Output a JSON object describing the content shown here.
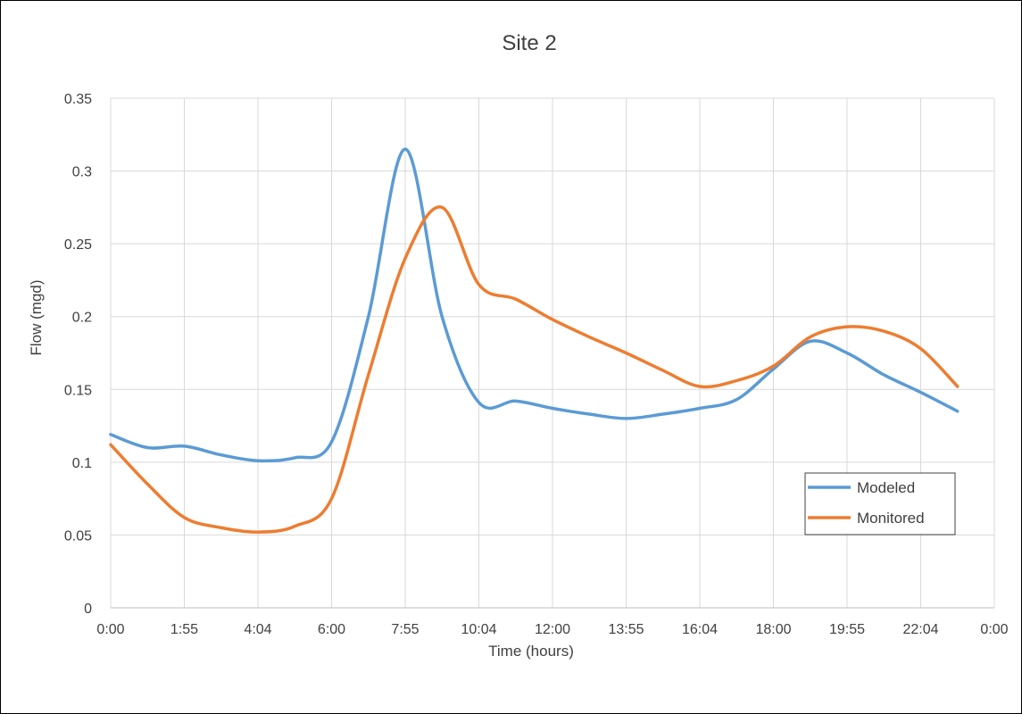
{
  "chart_data": {
    "type": "line",
    "title": "Site 2",
    "xlabel": "Time (hours)",
    "ylabel": "Flow (mgd)",
    "ylim": [
      0,
      0.35
    ],
    "yticks": [
      "0",
      "0.05",
      "0.1",
      "0.15",
      "0.2",
      "0.25",
      "0.3",
      "0.35"
    ],
    "xticks": [
      "0:00",
      "1:55",
      "4:04",
      "6:00",
      "7:55",
      "10:04",
      "12:00",
      "13:55",
      "16:04",
      "18:00",
      "19:55",
      "22:04",
      "0:00"
    ],
    "grid": true,
    "legend_position": "right",
    "x_hours": [
      0,
      1,
      2,
      3,
      4,
      5,
      6,
      7,
      8,
      9,
      10,
      11,
      12,
      13,
      14,
      15,
      16,
      17,
      18,
      19,
      20,
      21,
      22,
      23
    ],
    "series": [
      {
        "name": "Modeled",
        "color": "#5B9BD5",
        "values": [
          0.119,
          0.11,
          0.111,
          0.105,
          0.101,
          0.103,
          0.114,
          0.2,
          0.315,
          0.2,
          0.141,
          0.142,
          0.137,
          0.133,
          0.13,
          0.133,
          0.137,
          0.143,
          0.164,
          0.183,
          0.175,
          0.16,
          0.148,
          0.135
        ]
      },
      {
        "name": "Monitored",
        "color": "#ED7D31",
        "values": [
          0.112,
          0.085,
          0.062,
          0.055,
          0.052,
          0.056,
          0.075,
          0.16,
          0.24,
          0.275,
          0.222,
          0.212,
          0.198,
          0.186,
          0.175,
          0.163,
          0.152,
          0.156,
          0.166,
          0.186,
          0.193,
          0.19,
          0.178,
          0.152
        ]
      }
    ]
  }
}
